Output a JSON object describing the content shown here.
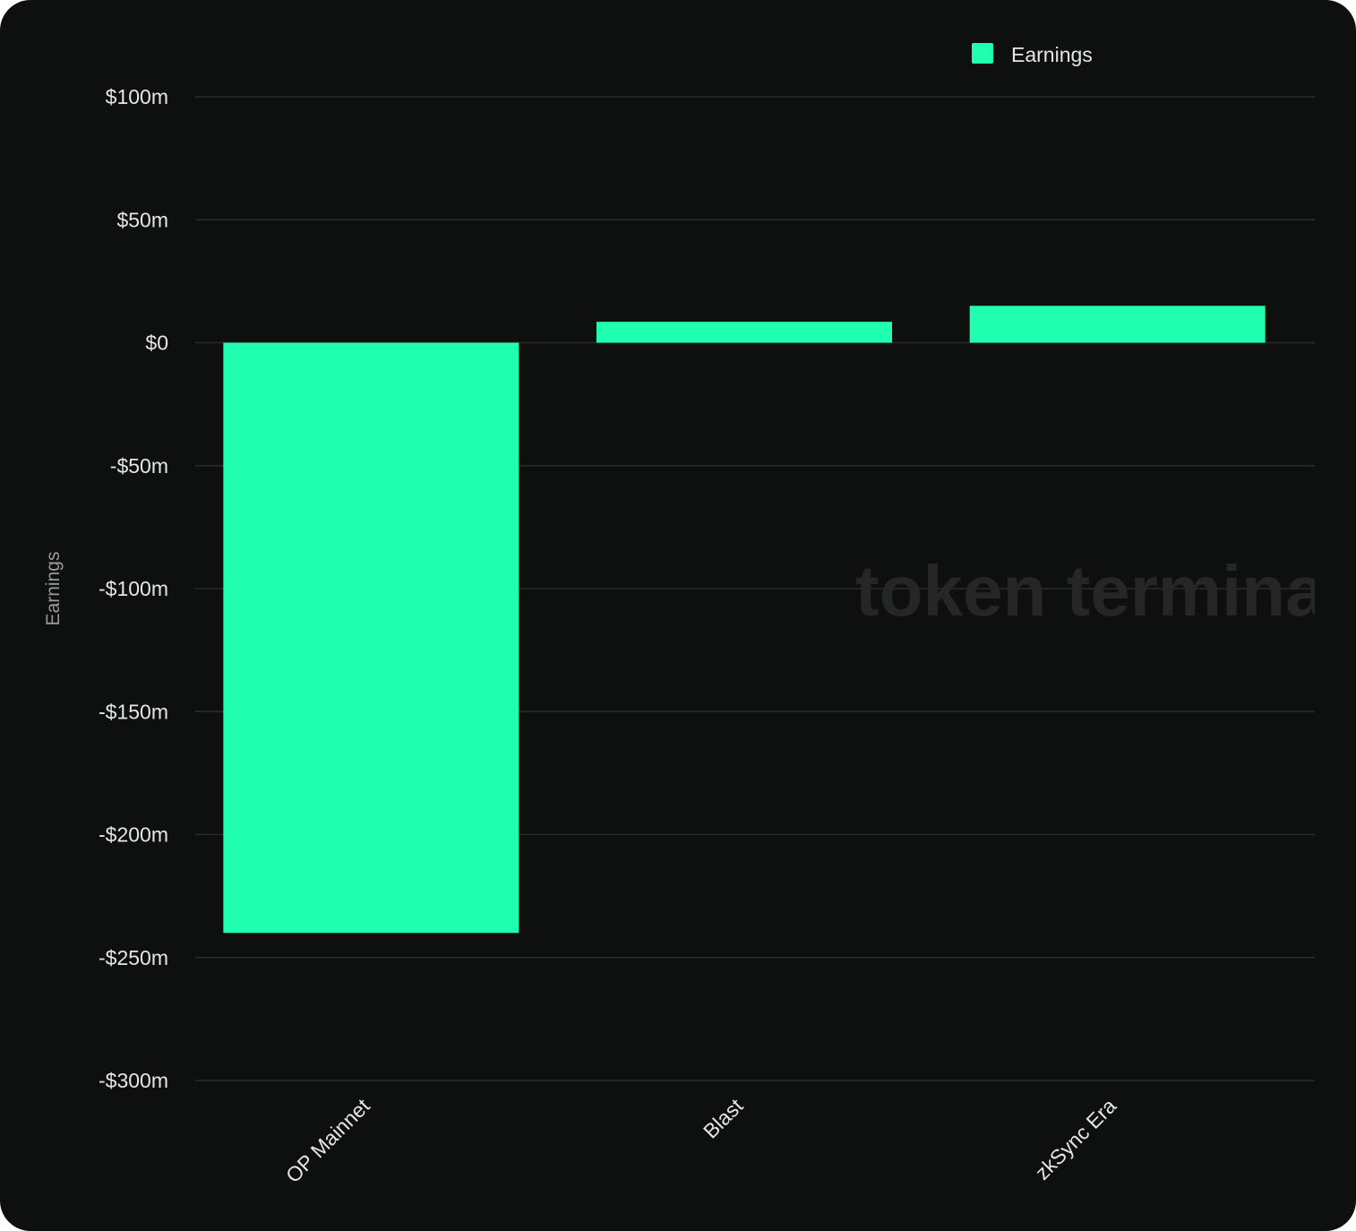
{
  "chart_data": {
    "type": "bar",
    "categories": [
      "OP Mainnet",
      "Blast",
      "zkSync Era"
    ],
    "series": [
      {
        "name": "Earnings",
        "color": "#20ffb0",
        "values": [
          -240,
          8.5,
          15
        ]
      }
    ],
    "ylabel": "Earnings",
    "ylim": [
      -300,
      100
    ],
    "yticks": [
      100,
      50,
      0,
      -50,
      -100,
      -150,
      -200,
      -250,
      -300
    ],
    "ytick_labels": [
      "$100m",
      "$50m",
      "$0",
      "-$50m",
      "-$100m",
      "-$150m",
      "-$200m",
      "-$250m",
      "-$300m"
    ],
    "legend_position": "top-right",
    "grid": true
  },
  "legend": {
    "label": "Earnings",
    "color": "#20ffb0"
  },
  "watermark": {
    "text": "token terminal"
  },
  "colors": {
    "background": "#0e0f0f",
    "bar": "#20ffb0"
  }
}
